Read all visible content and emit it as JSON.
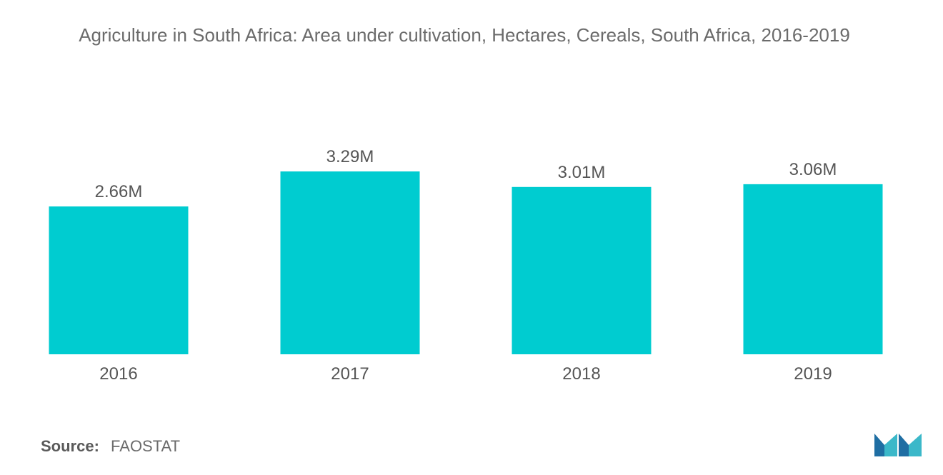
{
  "chart_data": {
    "type": "bar",
    "title": "Agriculture in South Africa: Area under cultivation, Hectares, Cereals, South Africa, 2016-2019",
    "categories": [
      "2016",
      "2017",
      "2018",
      "2019"
    ],
    "values": [
      2660000,
      3290000,
      3010000,
      3060000
    ],
    "data_labels": [
      "2.66M",
      "3.29M",
      "3.01M",
      "3.06M"
    ],
    "xlabel": "",
    "ylabel": "",
    "ylim": [
      0,
      3290000
    ],
    "grid": false,
    "legend": "none",
    "colors": {
      "bar": "#00CCD0",
      "text": "#555555"
    }
  },
  "source": {
    "label": "Source:",
    "value": "FAOSTAT"
  },
  "logo": {
    "icon": "mordor-intelligence-logo-icon",
    "colors": [
      "#1f6ea3",
      "#3bb8c9"
    ]
  }
}
